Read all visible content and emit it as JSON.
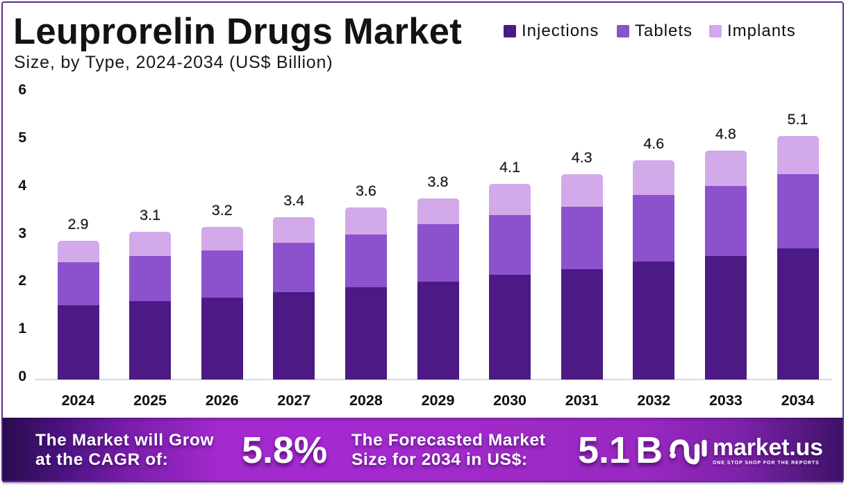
{
  "frame": {
    "border_color": "#5c2b90"
  },
  "header": {
    "title": "Leuprorelin Drugs Market",
    "subtitle": "Size, by Type, 2024-2034 (US$ Billion)"
  },
  "legend": [
    {
      "label": "Injections",
      "color": "#4c1a84"
    },
    {
      "label": "Tablets",
      "color": "#8c51cc"
    },
    {
      "label": "Implants",
      "color": "#d2a9e9"
    }
  ],
  "chart_data": {
    "type": "bar",
    "stacked": true,
    "title": "Leuprorelin Drugs Market",
    "subtitle": "Size, by Type, 2024-2034 (US$ Billion)",
    "unit": "US$ Billion",
    "categories": [
      "2024",
      "2025",
      "2026",
      "2027",
      "2028",
      "2029",
      "2030",
      "2031",
      "2032",
      "2033",
      "2034"
    ],
    "series": [
      {
        "name": "Injections",
        "color": "#4c1a84",
        "values": [
          1.55,
          1.64,
          1.72,
          1.83,
          1.94,
          2.05,
          2.2,
          2.31,
          2.47,
          2.58,
          2.74
        ]
      },
      {
        "name": "Tablets",
        "color": "#8c51cc",
        "values": [
          0.9,
          0.95,
          0.98,
          1.04,
          1.1,
          1.2,
          1.24,
          1.31,
          1.39,
          1.47,
          1.56
        ]
      },
      {
        "name": "Implants",
        "color": "#d2a9e9",
        "values": [
          0.45,
          0.51,
          0.5,
          0.53,
          0.56,
          0.55,
          0.66,
          0.68,
          0.74,
          0.75,
          0.8
        ]
      }
    ],
    "totals": [
      2.9,
      3.1,
      3.2,
      3.4,
      3.6,
      3.8,
      4.1,
      4.3,
      4.6,
      4.8,
      5.1
    ],
    "total_labels": [
      "2.9",
      "3.1",
      "3.2",
      "3.4",
      "3.6",
      "3.8",
      "4.1",
      "4.3",
      "4.6",
      "4.8",
      "5.1"
    ],
    "ylim": [
      0,
      6
    ],
    "yticks": [
      0,
      1,
      2,
      3,
      4,
      5,
      6
    ],
    "grid": false,
    "legend_position": "top-right"
  },
  "footer": {
    "cagr_label_line1": "The Market will Grow",
    "cagr_label_line2": "at the CAGR of:",
    "cagr_value": "5.8%",
    "forecast_label_line1": "The Forecasted Market",
    "forecast_label_line2": "Size for 2034 in US$:",
    "forecast_value": "5.1 B",
    "logo_text": "market.us",
    "logo_tagline": "ONE STOP SHOP FOR THE REPORTS"
  }
}
